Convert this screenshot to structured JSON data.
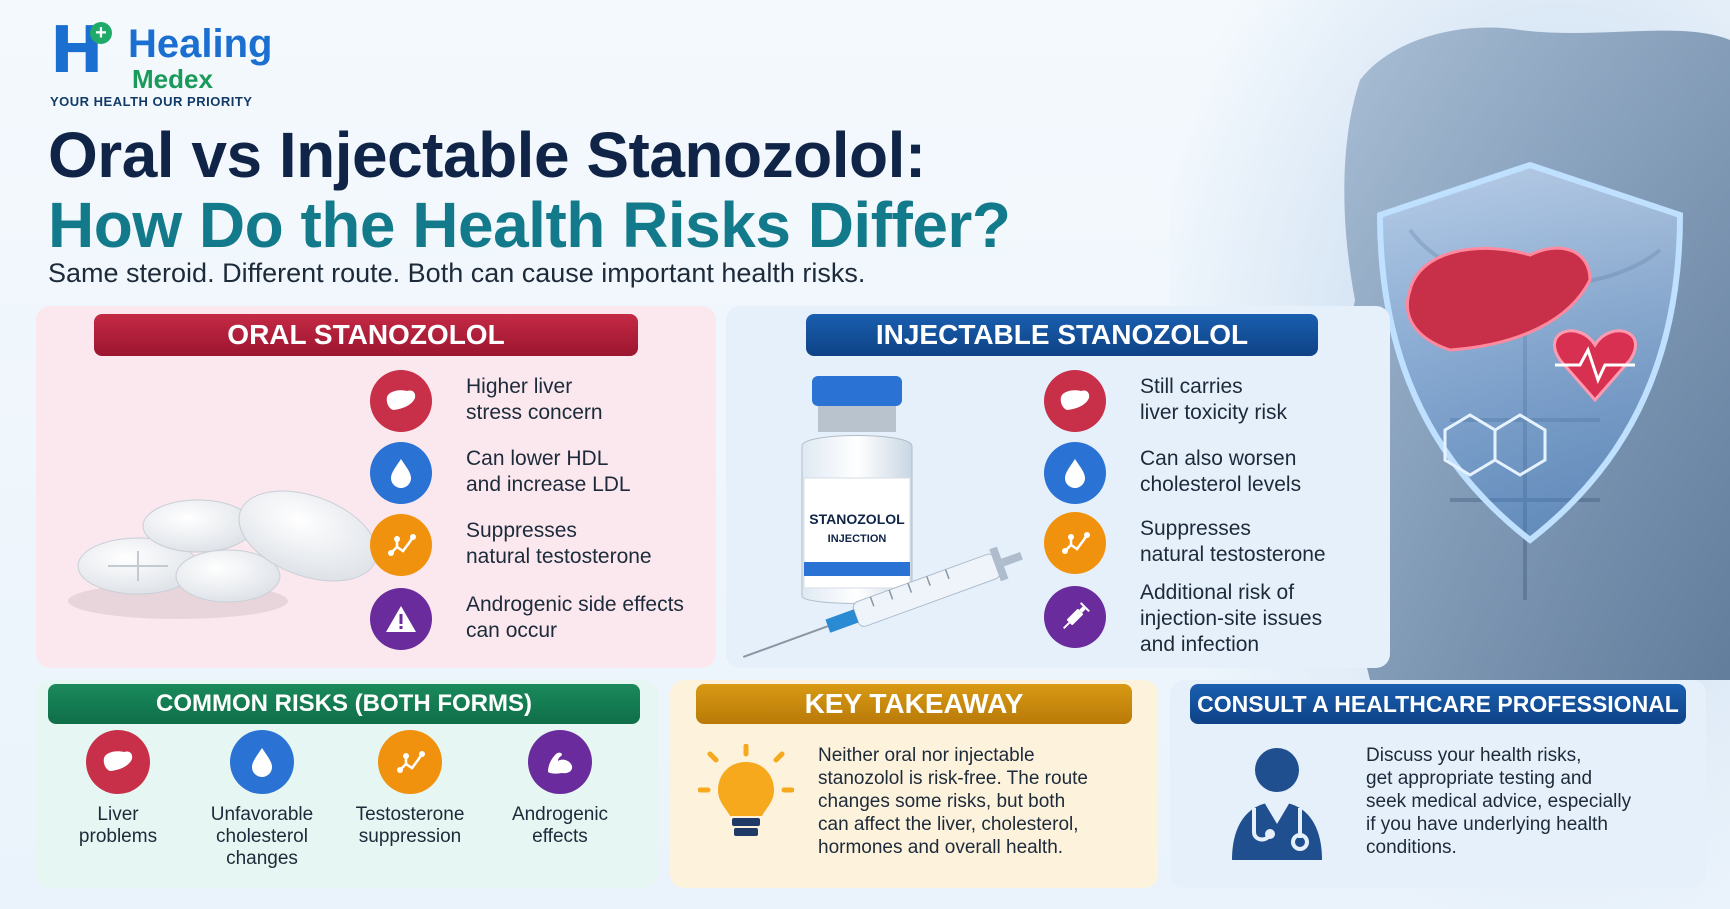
{
  "brand": {
    "name_line1": "Healing",
    "name_line2": "Medex",
    "tagline": "YOUR HEALTH  OUR PRIORITY"
  },
  "header": {
    "title_line1": "Oral vs Injectable Stanozolol:",
    "title_line2": "How Do the Health Risks Differ?",
    "subtitle": "Same steroid. Different route. Both can cause important health risks."
  },
  "oral": {
    "heading": "ORAL STANOZOLOL",
    "risks": [
      {
        "icon": "liver-icon",
        "line1": "Higher liver",
        "line2": "stress concern"
      },
      {
        "icon": "droplet-icon",
        "line1": "Can lower HDL",
        "line2": "and increase LDL"
      },
      {
        "icon": "molecule-icon",
        "line1": "Suppresses",
        "line2": "natural testosterone"
      },
      {
        "icon": "warning-icon",
        "line1": "Androgenic side effects",
        "line2": "can occur"
      }
    ]
  },
  "injectable": {
    "heading": "INJECTABLE STANOZOLOL",
    "vial_label": "STANOZOLOL",
    "vial_sublabel": "INJECTION",
    "risks": [
      {
        "icon": "liver-icon",
        "line1": "Still carries",
        "line2": "liver toxicity risk"
      },
      {
        "icon": "droplet-icon",
        "line1": "Can also worsen",
        "line2": "cholesterol levels"
      },
      {
        "icon": "molecule-icon",
        "line1": "Suppresses",
        "line2": "natural testosterone"
      },
      {
        "icon": "syringe-icon",
        "line1": "Additional risk of",
        "line2": "injection-site issues",
        "line3": "and infection"
      }
    ]
  },
  "common": {
    "heading": "COMMON RISKS (BOTH FORMS)",
    "items": [
      {
        "icon": "liver-icon",
        "line1": "Liver",
        "line2": "problems",
        "line3": ""
      },
      {
        "icon": "droplet-icon",
        "line1": "Unfavorable",
        "line2": "cholesterol",
        "line3": "changes"
      },
      {
        "icon": "molecule-icon",
        "line1": "Testosterone",
        "line2": "suppression",
        "line3": ""
      },
      {
        "icon": "muscle-icon",
        "line1": "Androgenic",
        "line2": "effects",
        "line3": ""
      }
    ]
  },
  "takeaway": {
    "heading": "KEY TAKEAWAY",
    "lines": [
      "Neither oral nor injectable",
      "stanozolol is risk-free. The route",
      "changes some risks, but both",
      "can affect the liver, cholesterol,",
      "hormones and overall health."
    ]
  },
  "consult": {
    "heading": "CONSULT A HEALTHCARE PROFESSIONAL",
    "lines": [
      "Discuss your health risks,",
      "get appropriate testing and",
      "seek medical advice, especially",
      "if you have underlying health",
      "conditions."
    ]
  },
  "colors": {
    "oral_accent": "#c42a45",
    "injectable_accent": "#1a5fb0",
    "common_accent": "#1a8a5c",
    "takeaway_accent": "#d89a14"
  }
}
